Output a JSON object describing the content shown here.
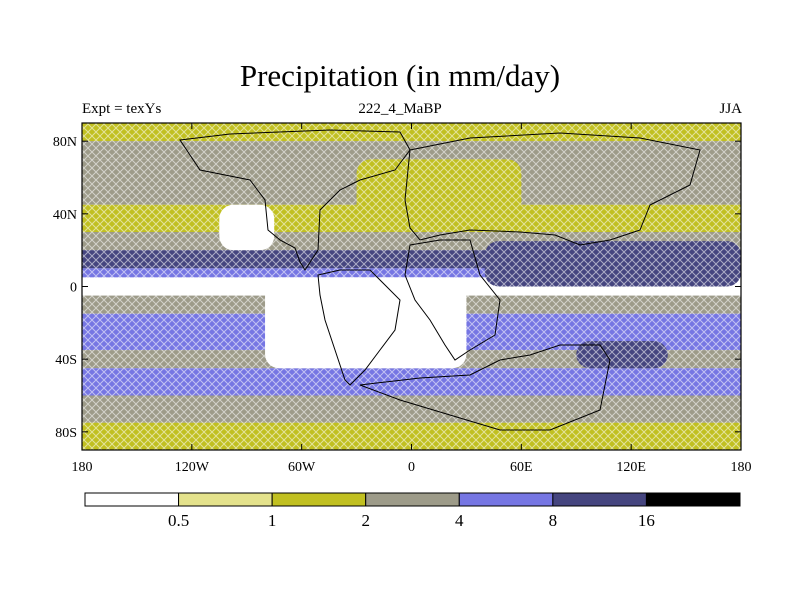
{
  "title": "Precipitation (in mm/day)",
  "left_label": "Expt = texYs",
  "center_label": "222_4_MaBP",
  "right_label": "JJA",
  "x_ticks": [
    {
      "value": -180,
      "label": "180"
    },
    {
      "value": -120,
      "label": "120W"
    },
    {
      "value": -60,
      "label": "60W"
    },
    {
      "value": 0,
      "label": "0"
    },
    {
      "value": 60,
      "label": "60E"
    },
    {
      "value": 120,
      "label": "120E"
    },
    {
      "value": 180,
      "label": "180"
    }
  ],
  "y_ticks": [
    {
      "value": 80,
      "label": "80N"
    },
    {
      "value": 40,
      "label": "40N"
    },
    {
      "value": 0,
      "label": "0"
    },
    {
      "value": -40,
      "label": "40S"
    },
    {
      "value": -80,
      "label": "80S"
    }
  ],
  "colorbar": {
    "levels": [
      "0.5",
      "1",
      "2",
      "4",
      "8",
      "16"
    ],
    "colors": [
      "#ffffff",
      "#e4e28c",
      "#c1c021",
      "#9d9b89",
      "#7676e3",
      "#45457f",
      "#000000"
    ]
  },
  "chart_data": {
    "type": "heatmap",
    "title": "Precipitation (in mm/day)",
    "xlim": [
      -180,
      180
    ],
    "ylim": [
      -90,
      90
    ],
    "levels": [
      0.5,
      1,
      2,
      4,
      8,
      16
    ],
    "bands": [
      {
        "lat": [
          80,
          90
        ],
        "value": 1.5
      },
      {
        "lat": [
          70,
          80
        ],
        "value": 2.5
      },
      {
        "lat": [
          55,
          70
        ],
        "value": 3.0
      },
      {
        "lat": [
          45,
          55
        ],
        "value": 2.5
      },
      {
        "lat": [
          30,
          45
        ],
        "value": 1.5
      },
      {
        "lat": [
          20,
          30
        ],
        "value": 3.0
      },
      {
        "lat": [
          10,
          20
        ],
        "value": 12
      },
      {
        "lat": [
          5,
          10
        ],
        "value": 6
      },
      {
        "lat": [
          -5,
          5
        ],
        "value": 0.3
      },
      {
        "lat": [
          -15,
          -5
        ],
        "value": 3.0
      },
      {
        "lat": [
          -35,
          -15
        ],
        "value": 6
      },
      {
        "lat": [
          -45,
          -35
        ],
        "value": 3.0
      },
      {
        "lat": [
          -60,
          -45
        ],
        "value": 6
      },
      {
        "lat": [
          -75,
          -60
        ],
        "value": 3.0
      },
      {
        "lat": [
          -90,
          -75
        ],
        "value": 1.5
      }
    ],
    "regions": [
      {
        "name": "north-american-dry",
        "lon": [
          -105,
          -75
        ],
        "lat": [
          20,
          45
        ],
        "value": 0.3
      },
      {
        "name": "south-american-dry",
        "lon": [
          -80,
          30
        ],
        "lat": [
          -45,
          5
        ],
        "value": 0.3
      },
      {
        "name": "asian-monsoon-belt",
        "lon": [
          40,
          180
        ],
        "lat": [
          0,
          25
        ],
        "value": 12
      },
      {
        "name": "southern-indian-ocean",
        "lon": [
          90,
          140
        ],
        "lat": [
          -45,
          -30
        ],
        "value": 8
      },
      {
        "name": "northern-desert",
        "lon": [
          -30,
          60
        ],
        "lat": [
          30,
          70
        ],
        "value": 1.5
      }
    ]
  }
}
